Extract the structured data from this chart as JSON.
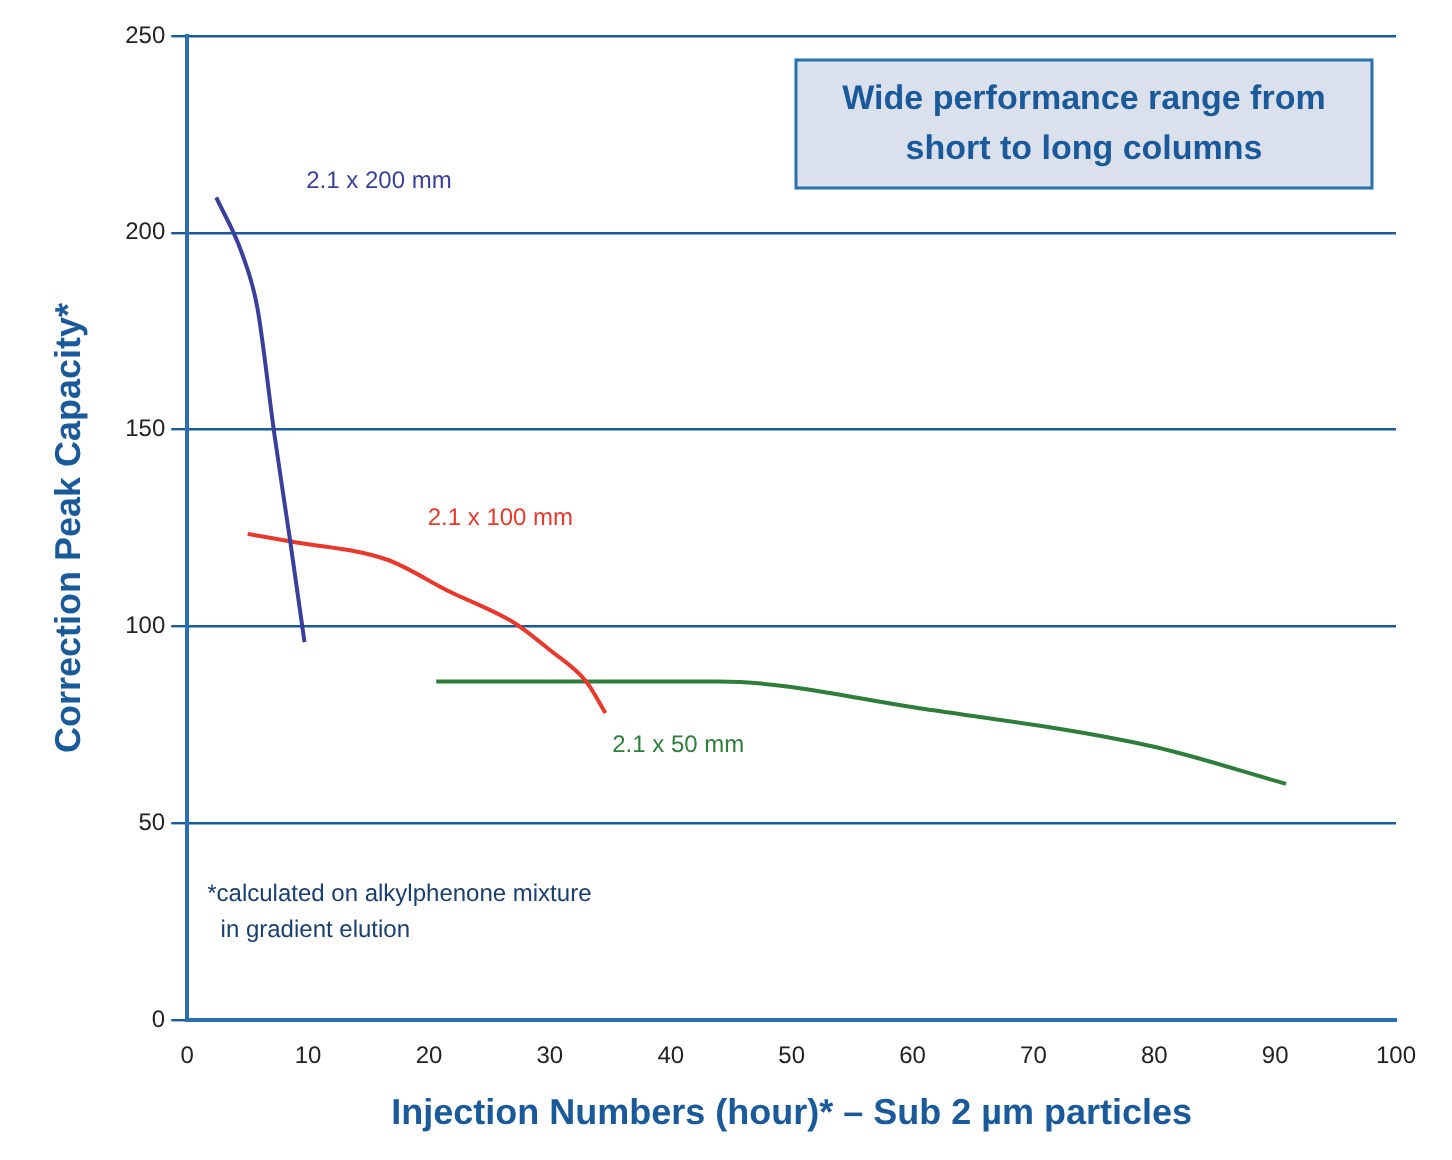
{
  "chart_data": {
    "type": "line",
    "xlabel": "Injection Numbers (hour)* – Sub 2 µm particles",
    "ylabel": "Correction Peak Capacity*",
    "xlim": [
      0,
      100
    ],
    "xticks": [
      0,
      10,
      20,
      30,
      40,
      50,
      60,
      70,
      80,
      90,
      100
    ],
    "ylim": [
      0,
      250
    ],
    "yticks": [
      0,
      50,
      100,
      150,
      200,
      250
    ],
    "grid": "y",
    "legend": false,
    "marker": "none",
    "series": [
      {
        "name": "2.1 x 200 mm",
        "color": "#3b3f9c",
        "x": [
          2.4,
          4.5,
          5.8,
          7.2,
          8.5,
          9.7
        ],
        "values": [
          209,
          195,
          181,
          149,
          122,
          96
        ]
      },
      {
        "name": "2.1 x 100 mm",
        "color": "#e8392c",
        "x": [
          5,
          8.7,
          16.5,
          21.6,
          27,
          30,
          33,
          34.6
        ],
        "values": [
          123.5,
          121.5,
          117,
          109,
          101,
          94,
          86,
          78
        ]
      },
      {
        "name": "2.1 x 50 mm",
        "color": "#2e7d3a",
        "x": [
          20.6,
          43.9,
          61,
          79.7,
          90.9
        ],
        "values": [
          86,
          86,
          79,
          69.6,
          60
        ]
      }
    ],
    "annotations": [
      "Wide performance range from\nshort to long columns",
      "*calculated on alkylphenone mixture\n  in gradient elution"
    ]
  }
}
